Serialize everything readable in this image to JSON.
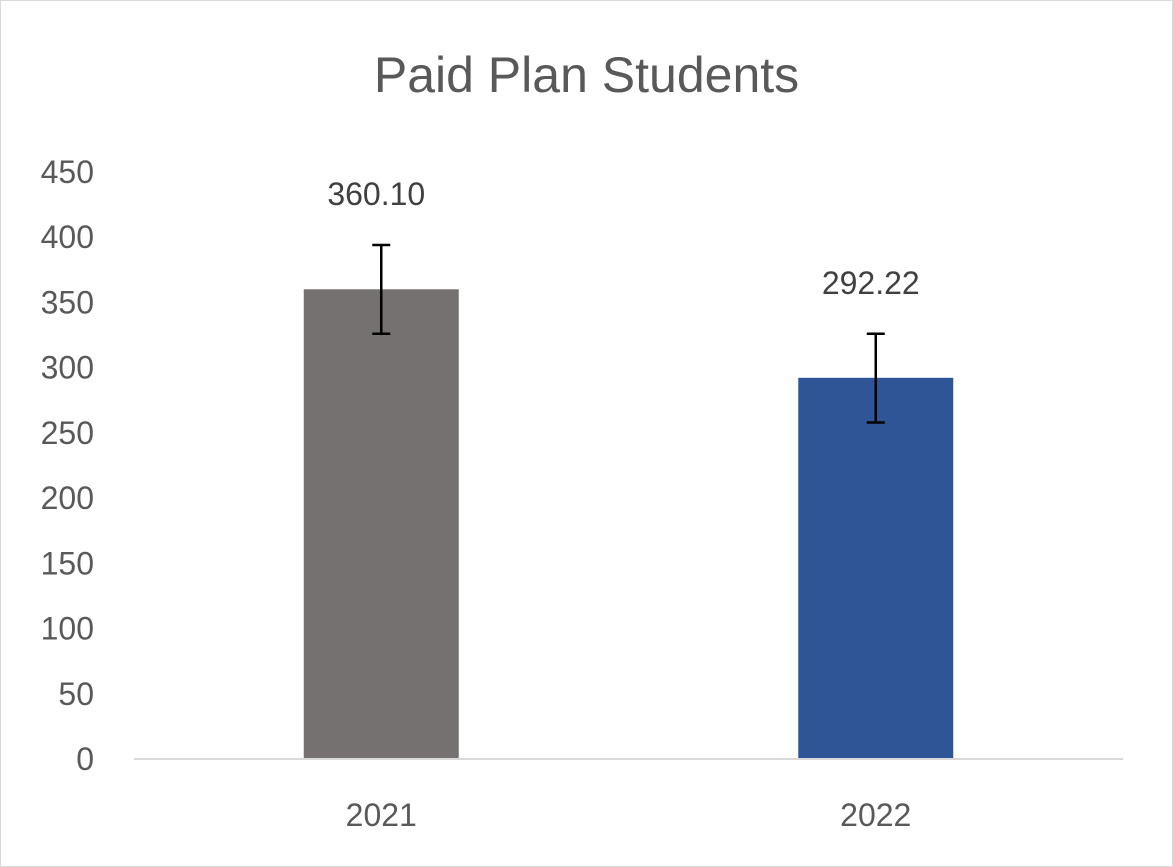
{
  "chart_data": {
    "type": "bar",
    "title": "Paid Plan Students",
    "xlabel": "",
    "ylabel": "",
    "categories": [
      "2021",
      "2022"
    ],
    "values": [
      360.1,
      292.22
    ],
    "value_labels": [
      "360.10",
      "292.22"
    ],
    "error_bars": [
      {
        "low": 326,
        "high": 394
      },
      {
        "low": 258,
        "high": 326
      }
    ],
    "bar_colors": [
      "#767171",
      "#2f5597"
    ],
    "ylim": [
      0,
      450
    ],
    "yticks": [
      0,
      50,
      100,
      150,
      200,
      250,
      300,
      350,
      400,
      450
    ],
    "ytick_labels": [
      "0",
      "50",
      "100",
      "150",
      "200",
      "250",
      "300",
      "350",
      "400",
      "450"
    ],
    "grid": false,
    "legend": "none"
  }
}
